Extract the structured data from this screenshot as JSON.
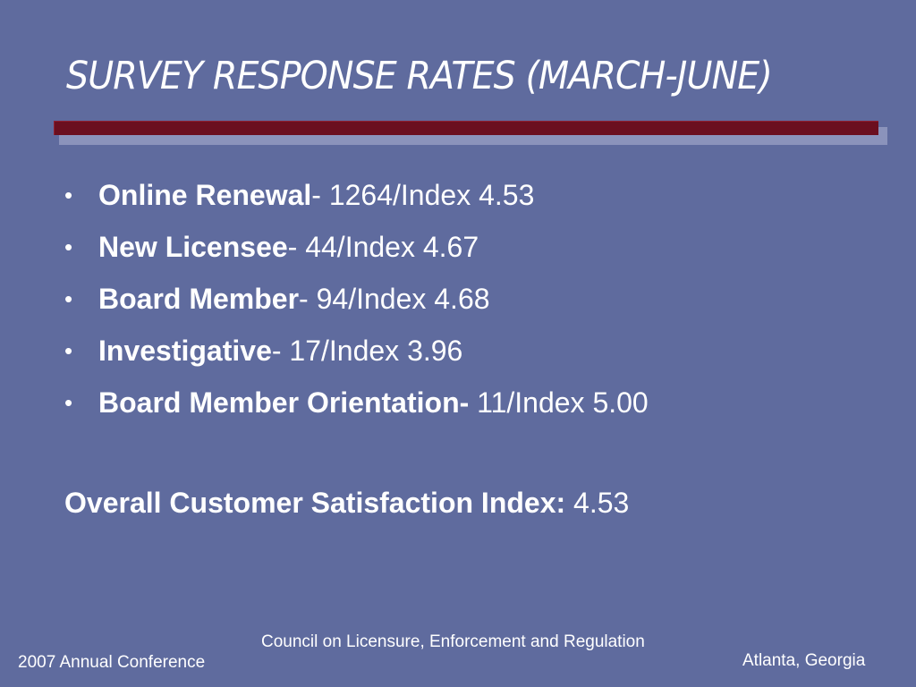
{
  "slide": {
    "title": "SURVEY RESPONSE RATES (MARCH-JUNE)",
    "bullets": [
      {
        "label": "Online Renewal",
        "value": "- 1264/Index 4.53"
      },
      {
        "label": "New Licensee",
        "value": "- 44/Index 4.67"
      },
      {
        "label": "Board Member",
        "value": "- 94/Index 4.68"
      },
      {
        "label": "Investigative",
        "value": "- 17/Index 3.96"
      },
      {
        "label": "Board Member Orientation-",
        "value": " 11/Index 5.00"
      }
    ],
    "bullet_glyph": "•",
    "overall": {
      "label": "Overall Customer Satisfaction Index:",
      "value": " 4.53"
    },
    "footer": {
      "left": "2007 Annual Conference",
      "center": "Council on Licensure, Enforcement and Regulation",
      "right": "Atlanta, Georgia"
    }
  },
  "colors": {
    "background": "#5f6b9e",
    "rule": "#6b0f1f",
    "rule_shadow": "#8b93bb",
    "text": "#ffffff"
  }
}
